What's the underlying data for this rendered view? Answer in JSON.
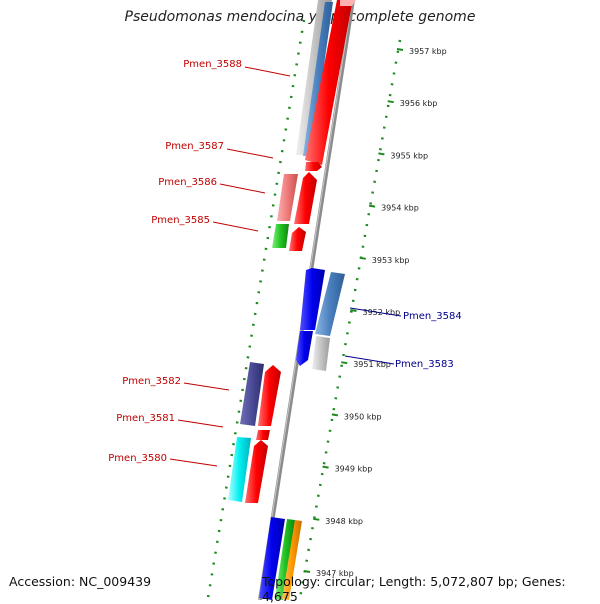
{
  "title": "Pseudomonas mendocina ymp, complete genome",
  "footer": {
    "accession": "Accession: NC_009439",
    "topology": "Topology: circular; Length: 5,072,807 bp; Genes: 4,675"
  },
  "colors": {
    "backbone": "#8c8c8c",
    "ruler_dots": "#1e8a1e",
    "left_label": "#c00000",
    "right_label": "#00008b"
  },
  "ruler_ticks": [
    {
      "kbp": 3957,
      "label": "3957 kbp"
    },
    {
      "kbp": 3956,
      "label": "3956 kbp"
    },
    {
      "kbp": 3955,
      "label": "3955 kbp"
    },
    {
      "kbp": 3954,
      "label": "3954 kbp"
    },
    {
      "kbp": 3953,
      "label": "3953 kbp"
    },
    {
      "kbp": 3952,
      "label": "3952 kbp"
    },
    {
      "kbp": 3951,
      "label": "3951 kbp"
    },
    {
      "kbp": 3950,
      "label": "3950 kbp"
    },
    {
      "kbp": 3949,
      "label": "3949 kbp"
    },
    {
      "kbp": 3948,
      "label": "3948 kbp"
    },
    {
      "kbp": 3947,
      "label": "3947 kbp"
    }
  ],
  "gene_labels": [
    {
      "name": "Pmen_3588",
      "side": "left"
    },
    {
      "name": "Pmen_3587",
      "side": "left"
    },
    {
      "name": "Pmen_3586",
      "side": "left"
    },
    {
      "name": "Pmen_3585",
      "side": "left"
    },
    {
      "name": "Pmen_3584",
      "side": "right"
    },
    {
      "name": "Pmen_3583",
      "side": "right"
    },
    {
      "name": "Pmen_3582",
      "side": "left"
    },
    {
      "name": "Pmen_3581",
      "side": "left"
    },
    {
      "name": "Pmen_3580",
      "side": "left"
    }
  ]
}
